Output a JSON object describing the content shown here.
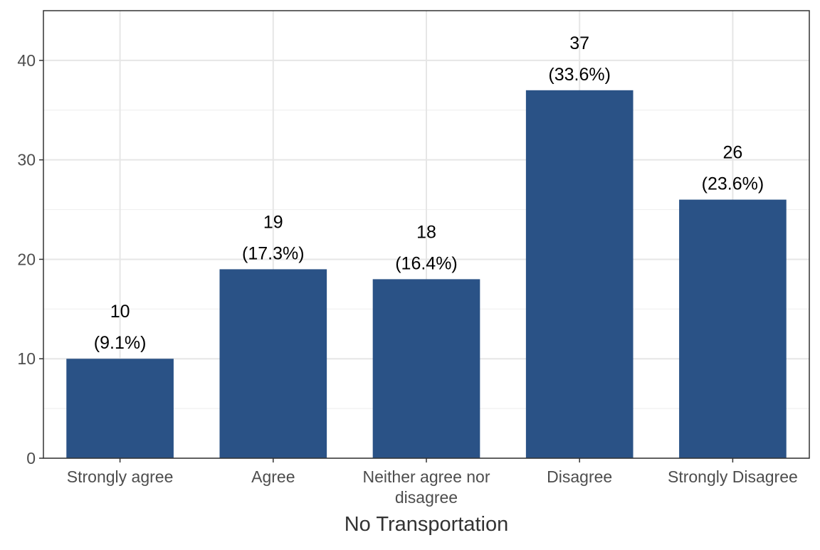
{
  "chart_data": {
    "type": "bar",
    "title": "",
    "xlabel": "No Transportation",
    "ylabel": "",
    "categories": [
      "Strongly agree",
      "Agree",
      "Neither agree nor disagree",
      "Disagree",
      "Strongly Disagree"
    ],
    "category_lines": [
      [
        "Strongly agree"
      ],
      [
        "Agree"
      ],
      [
        "Neither agree nor",
        "disagree"
      ],
      [
        "Disagree"
      ],
      [
        "Strongly Disagree"
      ]
    ],
    "values": [
      10,
      19,
      18,
      37,
      26
    ],
    "labels": [
      [
        "10",
        "(9.1%)"
      ],
      [
        "19",
        "(17.3%)"
      ],
      [
        "18",
        "(16.4%)"
      ],
      [
        "37",
        "(33.6%)"
      ],
      [
        "26",
        "(23.6%)"
      ]
    ],
    "yticks": [
      0,
      10,
      20,
      30,
      40
    ],
    "ylim": [
      0,
      45
    ],
    "grid": true,
    "legend": false,
    "bar_color": "#2a5286"
  }
}
